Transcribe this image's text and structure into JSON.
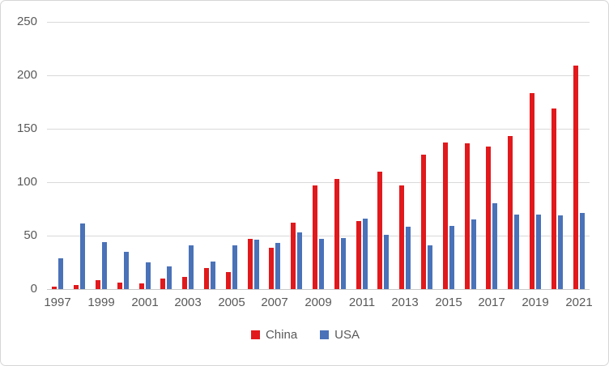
{
  "chart_data": {
    "type": "bar",
    "title": "",
    "xlabel": "",
    "ylabel": "",
    "categories": [
      1997,
      1998,
      1999,
      2000,
      2001,
      2002,
      2003,
      2004,
      2005,
      2006,
      2007,
      2008,
      2009,
      2010,
      2011,
      2012,
      2013,
      2014,
      2015,
      2016,
      2017,
      2018,
      2019,
      2020,
      2021
    ],
    "series": [
      {
        "name": "China",
        "color": "#e1191c",
        "values": [
          2,
          4,
          8,
          6,
          5,
          10,
          11,
          20,
          16,
          47,
          39,
          62,
          97,
          103,
          64,
          110,
          97,
          126,
          137,
          136,
          133,
          143,
          183,
          169,
          209
        ]
      },
      {
        "name": "USA",
        "color": "#4a72b8",
        "values": [
          29,
          61,
          44,
          35,
          25,
          21,
          41,
          26,
          41,
          46,
          43,
          53,
          47,
          48,
          66,
          51,
          58,
          41,
          59,
          65,
          80,
          70,
          70,
          69,
          71
        ]
      }
    ],
    "ylim": [
      0,
      250
    ],
    "yticks": [
      "0",
      "50",
      "100",
      "150",
      "200",
      "250"
    ],
    "xtick_labels": [
      "1997",
      "1999",
      "2001",
      "2003",
      "2005",
      "2007",
      "2009",
      "2011",
      "2013",
      "2015",
      "2017",
      "2019",
      "2021"
    ],
    "grid": "horizontal",
    "gridline_color": "#d9d9d9",
    "legend_position": "bottom",
    "text_color": "#595959",
    "background_color": "#ffffff"
  }
}
